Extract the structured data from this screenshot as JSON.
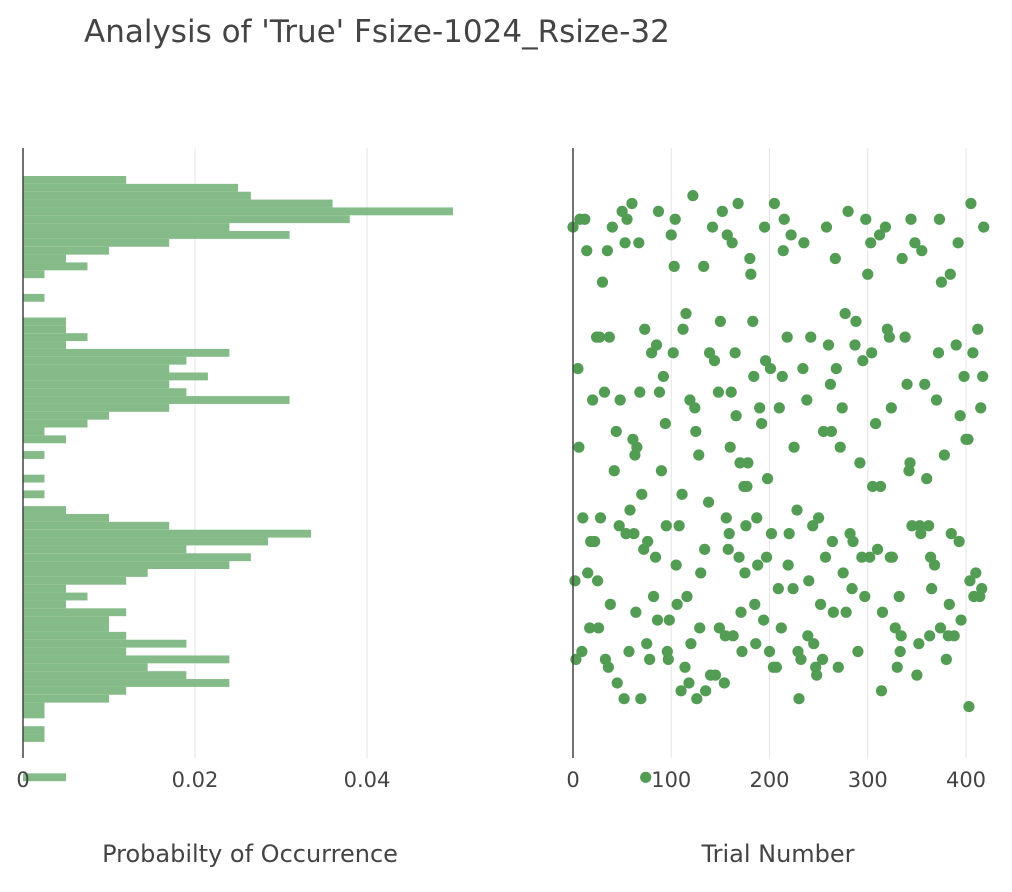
{
  "chart_data": [
    {
      "type": "bar",
      "orientation": "horizontal",
      "title": "Analysis of 'True' Fsize-1024_Rsize-32",
      "xlabel": "Probabilty of Occurrence",
      "ylabel": "",
      "xlim": [
        0,
        0.05
      ],
      "xticks": [
        "0",
        "0.02",
        "0.04"
      ],
      "grid": true,
      "color": "#85bb88",
      "values": [
        0.012,
        0.025,
        0.0265,
        0.036,
        0.05,
        0.038,
        0.024,
        0.031,
        0.017,
        0.01,
        0.005,
        0.0075,
        0.0025,
        0,
        0,
        0.0025,
        0,
        0,
        0.005,
        0.005,
        0.0075,
        0.005,
        0.024,
        0.019,
        0.017,
        0.0215,
        0.017,
        0.019,
        0.031,
        0.017,
        0.01,
        0.0075,
        0.0025,
        0.005,
        0,
        0.0025,
        0,
        0,
        0.0025,
        0,
        0.0025,
        0,
        0.005,
        0.01,
        0.017,
        0.0335,
        0.0285,
        0.019,
        0.0265,
        0.024,
        0.0145,
        0.012,
        0.005,
        0.0075,
        0.005,
        0.012,
        0.01,
        0.01,
        0.012,
        0.019,
        0.012,
        0.024,
        0.0145,
        0.019,
        0.024,
        0.012,
        0.01,
        0.0025,
        0.0025,
        0,
        0.0025,
        0.0025,
        0,
        0,
        0,
        0,
        0.005
      ]
    },
    {
      "type": "scatter",
      "xlabel": "Trial Number",
      "ylabel": "",
      "xlim": [
        0,
        420
      ],
      "xticks": [
        "0",
        "100",
        "200",
        "300",
        "400"
      ],
      "grid": true,
      "color": "#539c54",
      "y_domain": "same bins as left panel (index 0 = top)",
      "points": [
        [
          0,
          6
        ],
        [
          7,
          5
        ],
        [
          12,
          5
        ],
        [
          15,
          50
        ],
        [
          18,
          46
        ],
        [
          22,
          46
        ],
        [
          25,
          51
        ],
        [
          28,
          43
        ],
        [
          30,
          13
        ],
        [
          33,
          61
        ],
        [
          36,
          62
        ],
        [
          38,
          54
        ],
        [
          45,
          64
        ],
        [
          52,
          66
        ],
        [
          58,
          42
        ],
        [
          60,
          3
        ],
        [
          63,
          35
        ],
        [
          68,
          27
        ],
        [
          70,
          40
        ],
        [
          75,
          59
        ],
        [
          80,
          22
        ],
        [
          85,
          21
        ],
        [
          90,
          37
        ],
        [
          95,
          44
        ],
        [
          100,
          7
        ],
        [
          103,
          11
        ],
        [
          108,
          44
        ],
        [
          112,
          19
        ],
        [
          118,
          64
        ],
        [
          120,
          59
        ],
        [
          125,
          32
        ],
        [
          130,
          50
        ],
        [
          135,
          65
        ],
        [
          142,
          6
        ],
        [
          150,
          18
        ],
        [
          155,
          58
        ],
        [
          160,
          34
        ],
        [
          165,
          22
        ],
        [
          170,
          36
        ],
        [
          175,
          50
        ],
        [
          180,
          10
        ],
        [
          185,
          54
        ],
        [
          190,
          29
        ],
        [
          195,
          6
        ],
        [
          200,
          60
        ],
        [
          210,
          29
        ],
        [
          215,
          5
        ],
        [
          220,
          45
        ],
        [
          225,
          34
        ],
        [
          230,
          66
        ],
        [
          235,
          8
        ],
        [
          240,
          51
        ],
        [
          245,
          59
        ],
        [
          250,
          43
        ],
        [
          255,
          32
        ],
        [
          260,
          21
        ],
        [
          265,
          55
        ],
        [
          270,
          62
        ],
        [
          275,
          50
        ],
        [
          280,
          4
        ],
        [
          285,
          46
        ],
        [
          290,
          60
        ],
        [
          295,
          23
        ],
        [
          300,
          12
        ],
        [
          305,
          39
        ],
        [
          310,
          47
        ],
        [
          315,
          55
        ],
        [
          320,
          19
        ],
        [
          325,
          48
        ],
        [
          330,
          62
        ],
        [
          335,
          10
        ],
        [
          340,
          26
        ],
        [
          345,
          44
        ],
        [
          350,
          63
        ],
        [
          355,
          9
        ],
        [
          360,
          38
        ],
        [
          365,
          52
        ],
        [
          370,
          28
        ],
        [
          375,
          13
        ],
        [
          380,
          61
        ],
        [
          385,
          45
        ],
        [
          390,
          21
        ],
        [
          395,
          56
        ],
        [
          400,
          33
        ],
        [
          405,
          3
        ],
        [
          410,
          50
        ],
        [
          415,
          29
        ],
        [
          418,
          6
        ],
        [
          5,
          24
        ],
        [
          40,
          6
        ],
        [
          48,
          28
        ],
        [
          55,
          5
        ],
        [
          65,
          34
        ],
        [
          72,
          47
        ],
        [
          78,
          61
        ],
        [
          88,
          27
        ],
        [
          98,
          56
        ],
        [
          105,
          49
        ],
        [
          114,
          62
        ],
        [
          122,
          2
        ],
        [
          128,
          35
        ],
        [
          138,
          41
        ],
        [
          145,
          63
        ],
        [
          152,
          4
        ],
        [
          158,
          47
        ],
        [
          163,
          58
        ],
        [
          168,
          3
        ],
        [
          172,
          60
        ],
        [
          178,
          36
        ],
        [
          183,
          18
        ],
        [
          188,
          49
        ],
        [
          192,
          31
        ],
        [
          198,
          38
        ],
        [
          205,
          3
        ],
        [
          212,
          57
        ],
        [
          218,
          20
        ],
        [
          228,
          42
        ],
        [
          238,
          28
        ],
        [
          248,
          63
        ],
        [
          258,
          6
        ],
        [
          268,
          24
        ],
        [
          278,
          55
        ],
        [
          288,
          18
        ],
        [
          298,
          5
        ],
        [
          308,
          31
        ],
        [
          318,
          6
        ],
        [
          328,
          57
        ],
        [
          338,
          20
        ],
        [
          348,
          8
        ],
        [
          358,
          26
        ],
        [
          368,
          49
        ],
        [
          378,
          35
        ],
        [
          388,
          58
        ],
        [
          398,
          25
        ],
        [
          408,
          53
        ],
        [
          412,
          19
        ],
        [
          416,
          52
        ],
        [
          3,
          61
        ],
        [
          10,
          43
        ],
        [
          20,
          28
        ],
        [
          26,
          57
        ],
        [
          35,
          9
        ],
        [
          42,
          37
        ],
        [
          50,
          4
        ],
        [
          57,
          60
        ],
        [
          62,
          45
        ],
        [
          67,
          8
        ],
        [
          73,
          19
        ],
        [
          82,
          53
        ],
        [
          87,
          4
        ],
        [
          92,
          25
        ],
        [
          97,
          61
        ],
        [
          102,
          22
        ],
        [
          110,
          65
        ],
        [
          116,
          53
        ],
        [
          126,
          66
        ],
        [
          133,
          11
        ],
        [
          140,
          63
        ],
        [
          148,
          27
        ],
        [
          154,
          64
        ],
        [
          159,
          45
        ],
        [
          166,
          30
        ],
        [
          171,
          55
        ],
        [
          176,
          44
        ],
        [
          181,
          12
        ],
        [
          186,
          59
        ],
        [
          196,
          23
        ],
        [
          202,
          45
        ],
        [
          207,
          62
        ],
        [
          213,
          25
        ],
        [
          222,
          7
        ],
        [
          232,
          61
        ],
        [
          242,
          20
        ],
        [
          252,
          54
        ],
        [
          262,
          26
        ],
        [
          272,
          34
        ],
        [
          282,
          45
        ],
        [
          292,
          36
        ],
        [
          302,
          48
        ],
        [
          312,
          7
        ],
        [
          322,
          20
        ],
        [
          332,
          53
        ],
        [
          342,
          37
        ],
        [
          352,
          59
        ],
        [
          362,
          44
        ],
        [
          372,
          22
        ],
        [
          382,
          58
        ],
        [
          392,
          8
        ],
        [
          402,
          33
        ],
        [
          6,
          34
        ],
        [
          14,
          9
        ],
        [
          24,
          20
        ],
        [
          32,
          27
        ],
        [
          44,
          32
        ],
        [
          54,
          45
        ],
        [
          64,
          55
        ],
        [
          74,
          76
        ],
        [
          84,
          48
        ],
        [
          94,
          31
        ],
        [
          104,
          5
        ],
        [
          115,
          17
        ],
        [
          124,
          29
        ],
        [
          134,
          47
        ],
        [
          144,
          23
        ],
        [
          156,
          43
        ],
        [
          162,
          8
        ],
        [
          174,
          39
        ],
        [
          184,
          25
        ],
        [
          194,
          56
        ],
        [
          204,
          62
        ],
        [
          214,
          9
        ],
        [
          224,
          52
        ],
        [
          234,
          24
        ],
        [
          244,
          44
        ],
        [
          254,
          61
        ],
        [
          264,
          46
        ],
        [
          274,
          29
        ],
        [
          284,
          52
        ],
        [
          294,
          48
        ],
        [
          304,
          22
        ],
        [
          314,
          65
        ],
        [
          324,
          29
        ],
        [
          334,
          58
        ],
        [
          344,
          5
        ],
        [
          354,
          45
        ],
        [
          364,
          48
        ],
        [
          374,
          57
        ],
        [
          384,
          12
        ],
        [
          394,
          30
        ],
        [
          404,
          51
        ],
        [
          414,
          53
        ],
        [
          2,
          51
        ],
        [
          9,
          60
        ],
        [
          17,
          57
        ],
        [
          27,
          20
        ],
        [
          37,
          20
        ],
        [
          47,
          44
        ],
        [
          53,
          8
        ],
        [
          61,
          33
        ],
        [
          69,
          66
        ],
        [
          76,
          46
        ],
        [
          86,
          56
        ],
        [
          96,
          60
        ],
        [
          106,
          54
        ],
        [
          111,
          40
        ],
        [
          119,
          28
        ],
        [
          129,
          57
        ],
        [
          139,
          22
        ],
        [
          149,
          57
        ],
        [
          157,
          7
        ],
        [
          161,
          27
        ],
        [
          169,
          48
        ],
        [
          177,
          39
        ],
        [
          187,
          43
        ],
        [
          197,
          48
        ],
        [
          201,
          24
        ],
        [
          209,
          52
        ],
        [
          219,
          49
        ],
        [
          229,
          60
        ],
        [
          239,
          58
        ],
        [
          247,
          62
        ],
        [
          257,
          48
        ],
        [
          263,
          32
        ],
        [
          267,
          10
        ],
        [
          277,
          17
        ],
        [
          287,
          21
        ],
        [
          297,
          53
        ],
        [
          303,
          8
        ],
        [
          313,
          39
        ],
        [
          323,
          48
        ],
        [
          333,
          60
        ],
        [
          343,
          36
        ],
        [
          353,
          44
        ],
        [
          363,
          58
        ],
        [
          373,
          5
        ],
        [
          383,
          54
        ],
        [
          393,
          46
        ],
        [
          403,
          67
        ],
        [
          407,
          22
        ],
        [
          417,
          25
        ]
      ]
    }
  ]
}
